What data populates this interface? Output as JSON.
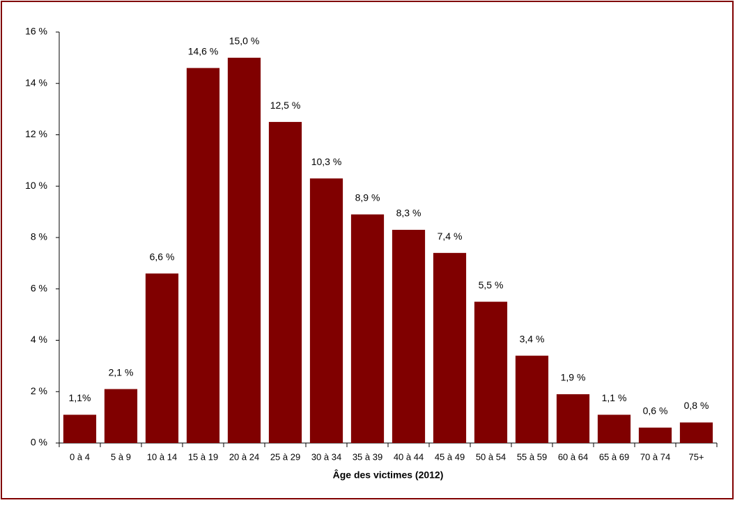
{
  "chart_data": {
    "type": "bar",
    "x_label": "Âge des victimes (2012)",
    "categories": [
      "0 à 4",
      "5 à 9",
      "10 à 14",
      "15 à 19",
      "20 à 24",
      "25 à 29",
      "30 à 34",
      "35 à 39",
      "40 à 44",
      "45 à 49",
      "50 à 54",
      "55 à 59",
      "60 à 64",
      "65 à 69",
      "70 à 74",
      "75+"
    ],
    "values": [
      1.1,
      2.1,
      6.6,
      14.6,
      15.0,
      12.5,
      10.3,
      8.9,
      8.3,
      7.4,
      5.5,
      3.4,
      1.9,
      1.1,
      0.6,
      0.8
    ],
    "value_labels": [
      "1,1%",
      "2,1 %",
      "6,6 %",
      "14,6 %",
      "15,0 %",
      "12,5 %",
      "10,3 %",
      "8,9 %",
      "8,3 %",
      "7,4 %",
      "5,5 %",
      "3,4 %",
      "1,9 %",
      "1,1 %",
      "0,6 %",
      "0,8 %"
    ],
    "color": "#800000",
    "ylim": [
      0,
      16
    ],
    "yticks": [
      {
        "value": 0,
        "label": "0 %"
      },
      {
        "value": 2,
        "label": "2 %"
      },
      {
        "value": 4,
        "label": "4 %"
      },
      {
        "value": 6,
        "label": "6 %"
      },
      {
        "value": 8,
        "label": "8 %"
      },
      {
        "value": 10,
        "label": "10 %"
      },
      {
        "value": 12,
        "label": "12 %"
      },
      {
        "value": 14,
        "label": "14 %"
      },
      {
        "value": 16,
        "label": "16 %"
      }
    ],
    "grid": false
  }
}
